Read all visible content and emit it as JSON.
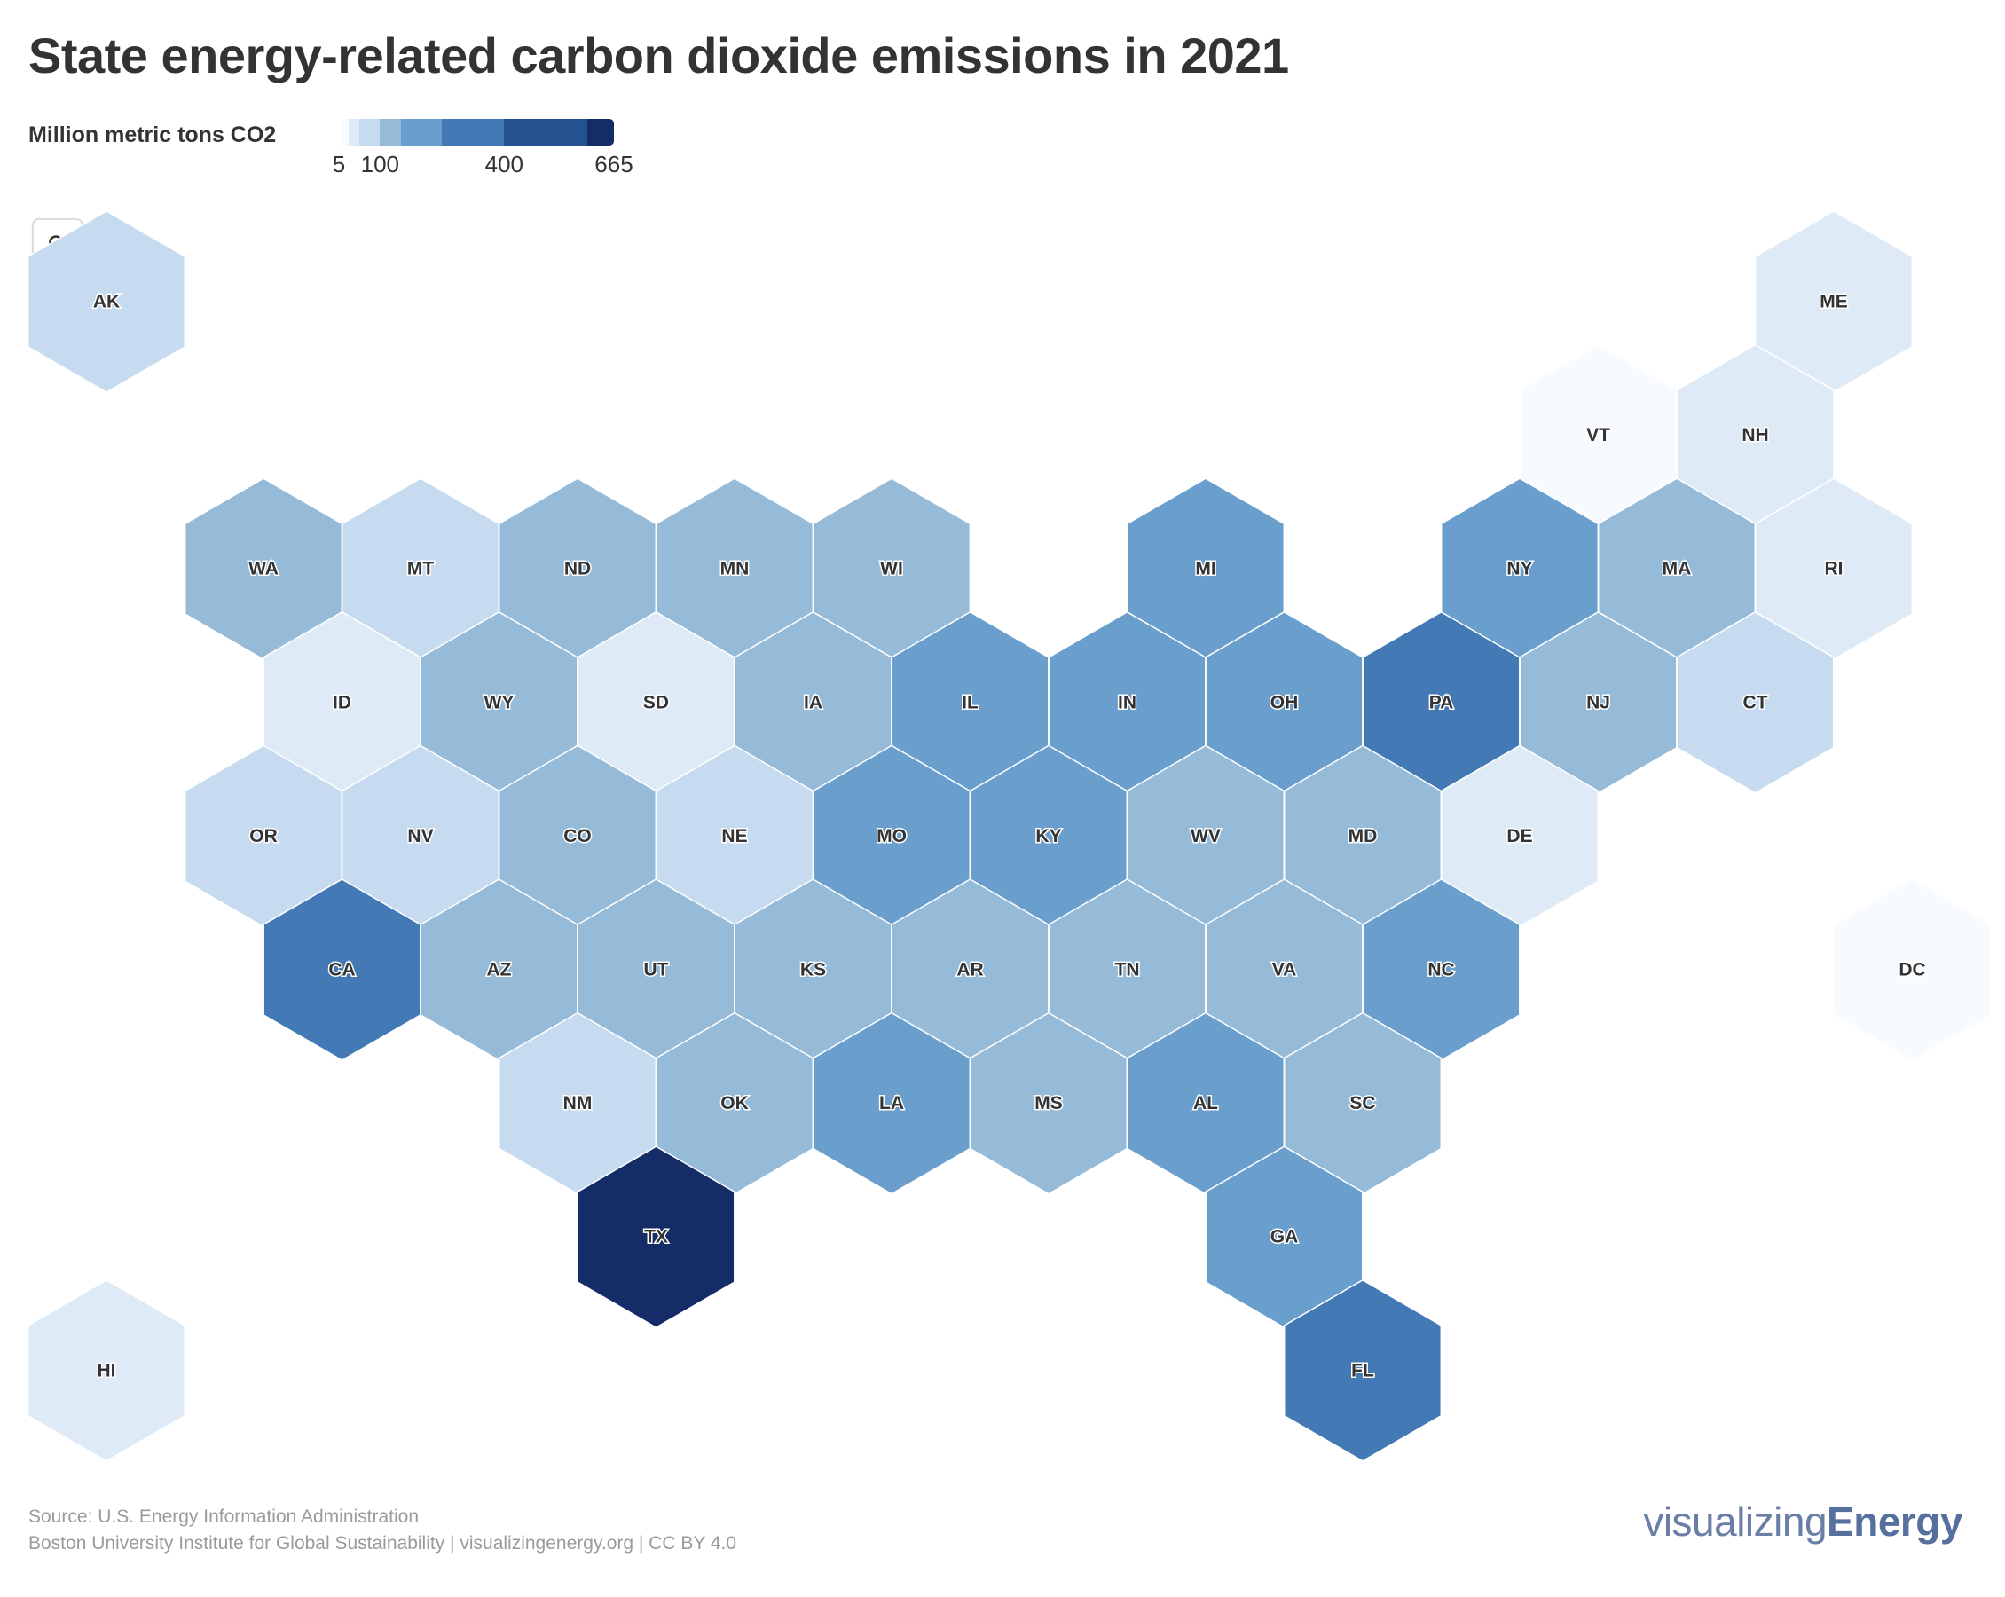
{
  "title": "State energy-related carbon dioxide emissions in 2021",
  "legend": {
    "title": "Million metric tons CO2",
    "ticks": [
      {
        "label": "5",
        "value": 5
      },
      {
        "label": "100",
        "value": 100
      },
      {
        "label": "400",
        "value": 400
      },
      {
        "label": "665",
        "value": 665
      }
    ],
    "scale": {
      "min": 5,
      "max": 665,
      "bins": [
        {
          "from": 5,
          "to": 25,
          "color": "#f7fbff"
        },
        {
          "from": 25,
          "to": 50,
          "color": "#deebf7"
        },
        {
          "from": 50,
          "to": 100,
          "color": "#c6dbef"
        },
        {
          "from": 100,
          "to": 150,
          "color": "#95bbd9"
        },
        {
          "from": 150,
          "to": 250,
          "color": "#6a9fcd"
        },
        {
          "from": 250,
          "to": 400,
          "color": "#4379b4"
        },
        {
          "from": 400,
          "to": 600,
          "color": "#24528f"
        },
        {
          "from": 600,
          "to": 665,
          "color": "#142d66"
        }
      ]
    }
  },
  "zoom_button": {
    "icon": "search-icon"
  },
  "chart_data": {
    "type": "hexbin choropleth map",
    "value_unit": "Million metric tons CO2",
    "color_scale": "sequential blues, light = low, dark = high",
    "states": [
      {
        "abbr": "AK",
        "col": 0,
        "row": 0,
        "bin": "50–100"
      },
      {
        "abbr": "ME",
        "col": 11,
        "row": 0,
        "bin": "25–50"
      },
      {
        "abbr": "VT",
        "col": 9.5,
        "row": 1,
        "bin": "5–25"
      },
      {
        "abbr": "NH",
        "col": 10.5,
        "row": 1,
        "bin": "25–50"
      },
      {
        "abbr": "WA",
        "col": 1,
        "row": 2,
        "bin": "100–150"
      },
      {
        "abbr": "MT",
        "col": 2,
        "row": 2,
        "bin": "50–100"
      },
      {
        "abbr": "ND",
        "col": 3,
        "row": 2,
        "bin": "100–150"
      },
      {
        "abbr": "MN",
        "col": 4,
        "row": 2,
        "bin": "100–150"
      },
      {
        "abbr": "WI",
        "col": 5,
        "row": 2,
        "bin": "100–150"
      },
      {
        "abbr": "MI",
        "col": 7,
        "row": 2,
        "bin": "150–250"
      },
      {
        "abbr": "NY",
        "col": 9,
        "row": 2,
        "bin": "150–250"
      },
      {
        "abbr": "MA",
        "col": 10,
        "row": 2,
        "bin": "100–150"
      },
      {
        "abbr": "RI",
        "col": 11,
        "row": 2,
        "bin": "25–50"
      },
      {
        "abbr": "ID",
        "col": 1.5,
        "row": 3,
        "bin": "25–50"
      },
      {
        "abbr": "WY",
        "col": 2.5,
        "row": 3,
        "bin": "100–150"
      },
      {
        "abbr": "SD",
        "col": 3.5,
        "row": 3,
        "bin": "25–50"
      },
      {
        "abbr": "IA",
        "col": 4.5,
        "row": 3,
        "bin": "100–150"
      },
      {
        "abbr": "IL",
        "col": 5.5,
        "row": 3,
        "bin": "150–250"
      },
      {
        "abbr": "IN",
        "col": 6.5,
        "row": 3,
        "bin": "150–250"
      },
      {
        "abbr": "OH",
        "col": 7.5,
        "row": 3,
        "bin": "150–250"
      },
      {
        "abbr": "PA",
        "col": 8.5,
        "row": 3,
        "bin": "250–400"
      },
      {
        "abbr": "NJ",
        "col": 9.5,
        "row": 3,
        "bin": "100–150"
      },
      {
        "abbr": "CT",
        "col": 10.5,
        "row": 3,
        "bin": "50–100"
      },
      {
        "abbr": "OR",
        "col": 1,
        "row": 4,
        "bin": "50–100"
      },
      {
        "abbr": "NV",
        "col": 2,
        "row": 4,
        "bin": "50–100"
      },
      {
        "abbr": "CO",
        "col": 3,
        "row": 4,
        "bin": "100–150"
      },
      {
        "abbr": "NE",
        "col": 4,
        "row": 4,
        "bin": "50–100"
      },
      {
        "abbr": "MO",
        "col": 5,
        "row": 4,
        "bin": "150–250"
      },
      {
        "abbr": "KY",
        "col": 6,
        "row": 4,
        "bin": "150–250"
      },
      {
        "abbr": "WV",
        "col": 7,
        "row": 4,
        "bin": "100–150"
      },
      {
        "abbr": "MD",
        "col": 8,
        "row": 4,
        "bin": "100–150"
      },
      {
        "abbr": "DE",
        "col": 9,
        "row": 4,
        "bin": "25–50"
      },
      {
        "abbr": "CA",
        "col": 1.5,
        "row": 5,
        "bin": "250–400"
      },
      {
        "abbr": "AZ",
        "col": 2.5,
        "row": 5,
        "bin": "100–150"
      },
      {
        "abbr": "UT",
        "col": 3.5,
        "row": 5,
        "bin": "100–150"
      },
      {
        "abbr": "KS",
        "col": 4.5,
        "row": 5,
        "bin": "100–150"
      },
      {
        "abbr": "AR",
        "col": 5.5,
        "row": 5,
        "bin": "100–150"
      },
      {
        "abbr": "TN",
        "col": 6.5,
        "row": 5,
        "bin": "100–150"
      },
      {
        "abbr": "VA",
        "col": 7.5,
        "row": 5,
        "bin": "100–150"
      },
      {
        "abbr": "NC",
        "col": 8.5,
        "row": 5,
        "bin": "150–250"
      },
      {
        "abbr": "DC",
        "col": 11.5,
        "row": 5,
        "bin": "5–25"
      },
      {
        "abbr": "NM",
        "col": 3,
        "row": 6,
        "bin": "50–100"
      },
      {
        "abbr": "OK",
        "col": 4,
        "row": 6,
        "bin": "100–150"
      },
      {
        "abbr": "LA",
        "col": 5,
        "row": 6,
        "bin": "150–250"
      },
      {
        "abbr": "MS",
        "col": 6,
        "row": 6,
        "bin": "100–150"
      },
      {
        "abbr": "AL",
        "col": 7,
        "row": 6,
        "bin": "150–250"
      },
      {
        "abbr": "SC",
        "col": 8,
        "row": 6,
        "bin": "100–150"
      },
      {
        "abbr": "TX",
        "col": 3.5,
        "row": 7,
        "bin": "600–665"
      },
      {
        "abbr": "GA",
        "col": 7.5,
        "row": 7,
        "bin": "150–250"
      },
      {
        "abbr": "HI",
        "col": 0,
        "row": 8,
        "bin": "25–50"
      },
      {
        "abbr": "FL",
        "col": 8,
        "row": 8,
        "bin": "250–400"
      }
    ]
  },
  "footer": {
    "source": "Source: U.S. Energy Information Administration",
    "credit": "Boston University Institute for Global Sustainability | visualizingenergy.org | CC BY 4.0",
    "brand_light": "visualizing",
    "brand_bold": "Energy"
  }
}
